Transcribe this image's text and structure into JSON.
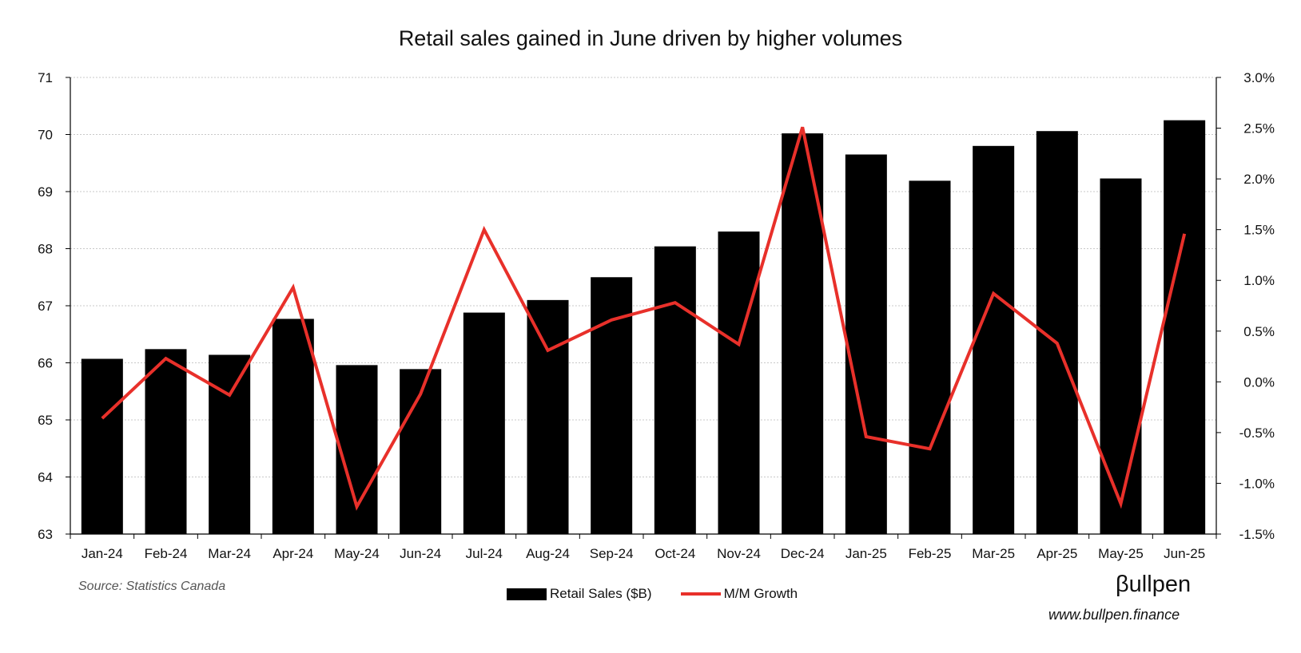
{
  "chart_data": {
    "type": "bar",
    "title": "Retail sales gained in June driven by higher volumes",
    "categories": [
      "Jan-24",
      "Feb-24",
      "Mar-24",
      "Apr-24",
      "May-24",
      "Jun-24",
      "Jul-24",
      "Aug-24",
      "Sep-24",
      "Oct-24",
      "Nov-24",
      "Dec-24",
      "Jan-25",
      "Feb-25",
      "Mar-25",
      "Apr-25",
      "May-25",
      "Jun-25"
    ],
    "series": [
      {
        "name": "Retail Sales ($B)",
        "type": "bar",
        "axis": "left",
        "color": "#000000",
        "values": [
          66.07,
          66.24,
          66.14,
          66.77,
          65.96,
          65.89,
          66.88,
          67.1,
          67.5,
          68.04,
          68.3,
          70.02,
          69.65,
          69.19,
          69.8,
          70.06,
          69.23,
          70.25
        ]
      },
      {
        "name": "M/M Growth",
        "type": "line",
        "axis": "right",
        "color": "#e8302a",
        "values": [
          -0.36,
          0.23,
          -0.13,
          0.93,
          -1.23,
          -0.12,
          1.5,
          0.31,
          0.61,
          0.78,
          0.37,
          2.51,
          -0.54,
          -0.66,
          0.87,
          0.38,
          -1.2,
          1.46
        ]
      }
    ],
    "y_left": {
      "min": 63,
      "max": 71,
      "ticks": [
        63,
        64,
        65,
        66,
        67,
        68,
        69,
        70,
        71
      ]
    },
    "y_right": {
      "min": -1.5,
      "max": 3.0,
      "ticks": [
        "-1.5%",
        "-1.0%",
        "-0.5%",
        "0.0%",
        "0.5%",
        "1.0%",
        "1.5%",
        "2.0%",
        "2.5%",
        "3.0%"
      ]
    },
    "grid": true,
    "legend_position": "bottom"
  },
  "footer": {
    "source": "Source: Statistics Canada",
    "brand": "βullpen",
    "website": "www.bullpen.finance"
  }
}
